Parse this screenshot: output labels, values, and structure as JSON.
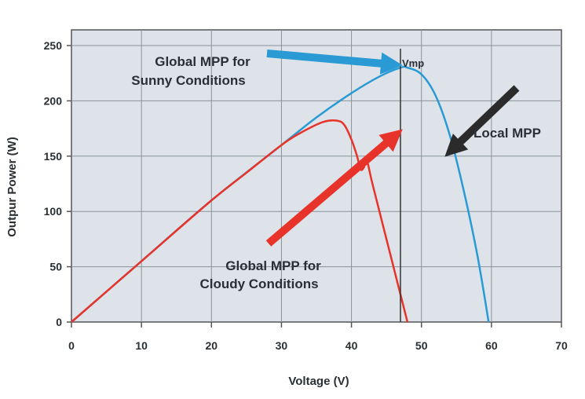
{
  "chart_data": {
    "type": "line",
    "xlabel": "Voltage (V)",
    "ylabel": "Outpur Power (W)",
    "xlim": [
      0,
      70
    ],
    "ylim": [
      0,
      260
    ],
    "xticks": [
      0,
      10,
      20,
      30,
      40,
      50,
      60,
      70
    ],
    "yticks": [
      0,
      50,
      100,
      150,
      200,
      250
    ],
    "xtick_labels": [
      "0",
      "10",
      "20",
      "30",
      "40",
      "50",
      "60",
      "70"
    ],
    "ytick_labels": [
      "0",
      "50",
      "100",
      "150",
      "200",
      "250"
    ],
    "grid": true,
    "background": "#dde3e8",
    "series": [
      {
        "color": "#2a9ad4",
        "x": [
          0,
          10,
          20,
          30,
          35,
          40,
          44,
          47,
          48,
          50,
          52,
          54,
          56,
          58,
          59.6
        ],
        "y": [
          0,
          55,
          110,
          160,
          185,
          207,
          222,
          230,
          230,
          224,
          205,
          170,
          120,
          60,
          0
        ]
      },
      {
        "color": "#e8332a",
        "x": [
          0,
          10,
          20,
          25,
          30,
          33,
          36,
          38,
          39,
          40,
          40.8,
          41.3,
          41.8,
          42.2,
          43,
          45,
          47,
          48
        ],
        "y": [
          0,
          55,
          110,
          135,
          160,
          172,
          181,
          182,
          178,
          165,
          150,
          138,
          140,
          146,
          125,
          75,
          25,
          0
        ]
      }
    ],
    "reference_line": {
      "x": 47,
      "label": "Vmp",
      "color": "#333333"
    },
    "annotations": [
      {
        "id": "sunny",
        "lines": [
          "Global MPP for",
          "Sunny Conditions"
        ],
        "arrow_color": "#2a9ad4",
        "points_to": [
          47,
          230
        ]
      },
      {
        "id": "local",
        "lines": [
          "Local MPP"
        ],
        "arrow_color": "#2b2b2b",
        "points_to": [
          43,
          148
        ]
      },
      {
        "id": "cloudy",
        "lines": [
          "Global MPP for",
          "Cloudy Conditions"
        ],
        "arrow_color": "#e8332a",
        "points_to": [
          37,
          178
        ]
      }
    ]
  }
}
